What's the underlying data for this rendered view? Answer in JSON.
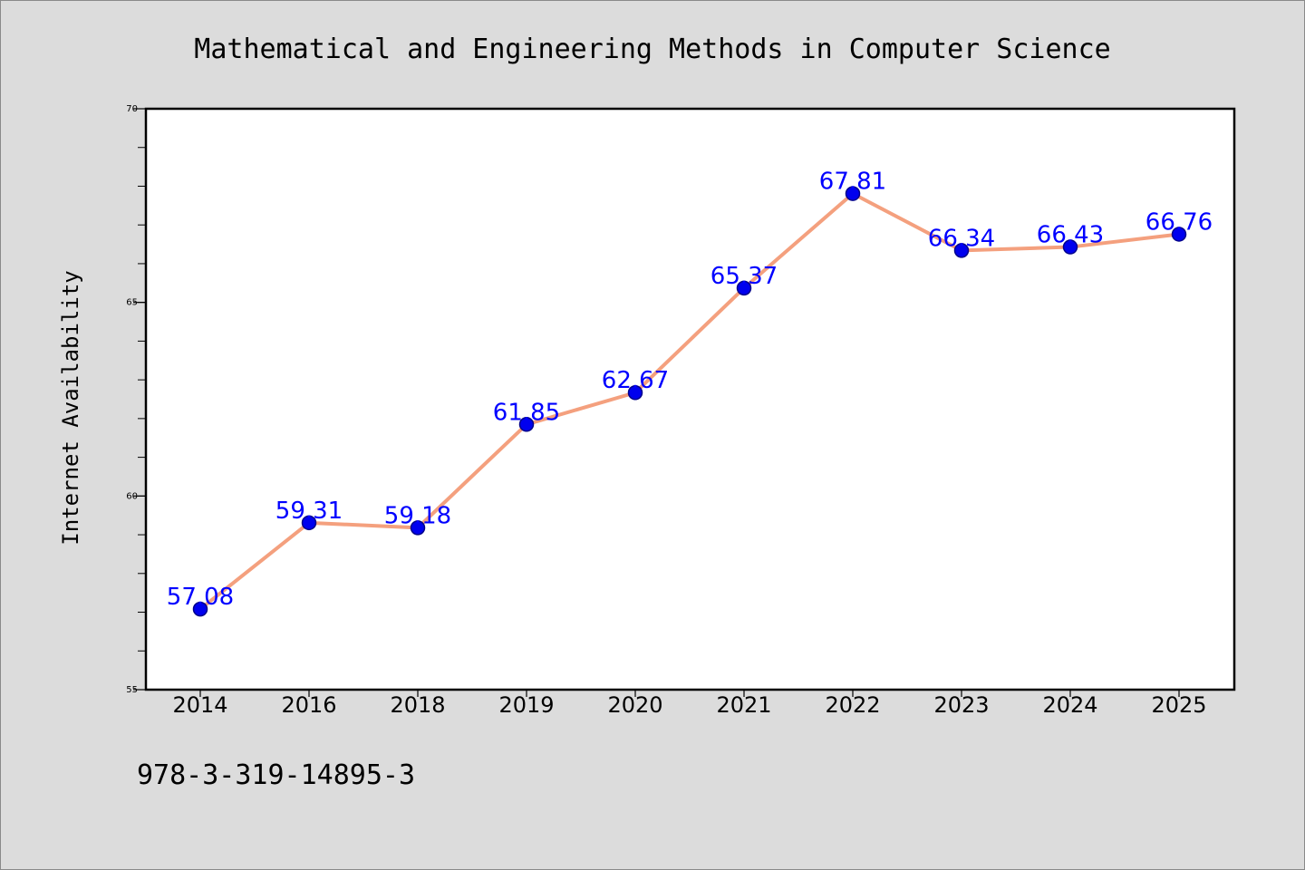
{
  "chart_data": {
    "type": "line",
    "title": "Mathematical and Engineering Methods in Computer Science",
    "xlabel": "",
    "ylabel": "Internet Availability",
    "categories": [
      "2014",
      "2016",
      "2018",
      "2019",
      "2020",
      "2021",
      "2022",
      "2023",
      "2024",
      "2025"
    ],
    "series": [
      {
        "values": [
          57.08,
          59.31,
          59.18,
          61.85,
          62.67,
          65.37,
          67.81,
          66.34,
          66.43,
          66.76
        ]
      }
    ],
    "data_labels": [
      "57.08",
      "59.31",
      "59.18",
      "61.85",
      "62.67",
      "65.37",
      "67.81",
      "66.34",
      "66.43",
      "66.76"
    ],
    "ylim": [
      55,
      70
    ],
    "yticks": [
      55,
      60,
      65,
      70
    ],
    "ytick_labels": [
      "55",
      "60",
      "65",
      "70"
    ],
    "grid": false,
    "legend": "none",
    "colors": {
      "line": "#f4a07e",
      "marker": "#0000ee",
      "marker_edge": "#00008b",
      "label": "#0000ff",
      "plot_bg": "#ffffff",
      "page_bg": "#dcdcdc"
    }
  },
  "footer": {
    "isbn": "978-3-319-14895-3"
  }
}
